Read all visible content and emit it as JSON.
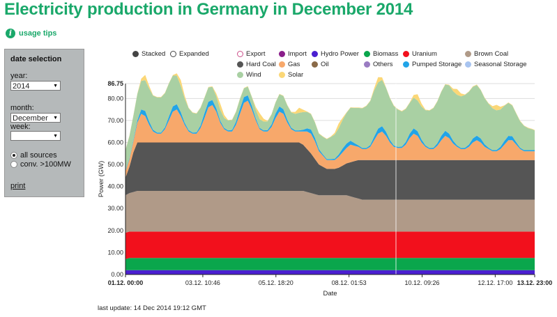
{
  "page": {
    "title": "Electricity production in Germany in December 2014",
    "usage_tips": "usage tips",
    "last_update": "last update: 14 Dec 2014 19:12 GMT"
  },
  "panel": {
    "heading": "date selection",
    "year_label": "year:",
    "year_value": "2014",
    "month_label": "month:",
    "month_value": "December",
    "week_label": "week:",
    "week_value": "",
    "radio_all": "all sources",
    "radio_conv": "conv. >100MW",
    "print": "print"
  },
  "modes": {
    "stacked": "Stacked",
    "expanded": "Expanded"
  },
  "colors": {
    "export": "#cc4f8a",
    "import": "#8a1e8a",
    "hydro": "#4a1fd0",
    "biomass": "#0aa64c",
    "uranium": "#f2101c",
    "brown_coal": "#b09a88",
    "hard_coal": "#555555",
    "gas": "#f7a86b",
    "oil": "#8a6a48",
    "others": "#9a7cc2",
    "pumped": "#21a4e8",
    "seasonal": "#a8c4f0",
    "wind": "#a9d0a3",
    "solar": "#fbd777"
  },
  "legend": [
    {
      "key": "export",
      "label": "Export",
      "hollow": true
    },
    {
      "key": "import",
      "label": "Import"
    },
    {
      "key": "hydro",
      "label": "Hydro Power"
    },
    {
      "key": "biomass",
      "label": "Biomass"
    },
    {
      "key": "uranium",
      "label": "Uranium"
    },
    {
      "key": "brown_coal",
      "label": "Brown Coal"
    },
    {
      "key": "hard_coal",
      "label": "Hard Coal"
    },
    {
      "key": "gas",
      "label": "Gas"
    },
    {
      "key": "oil",
      "label": "Oil"
    },
    {
      "key": "others",
      "label": "Others"
    },
    {
      "key": "pumped",
      "label": "Pumped Storage"
    },
    {
      "key": "seasonal",
      "label": "Seasonal Storage"
    },
    {
      "key": "wind",
      "label": "Wind"
    },
    {
      "key": "solar",
      "label": "Solar"
    }
  ],
  "chart_data": {
    "type": "area",
    "stacked": true,
    "title": "Electricity production in Germany in December 2014",
    "xlabel": "Date",
    "ylabel": "Power (GW)",
    "ylim": [
      0,
      86.75
    ],
    "xlim_hours": [
      0,
      311
    ],
    "y_ticks": [
      "0.00",
      "10.00",
      "20.00",
      "30.00",
      "40.00",
      "50.00",
      "60.00",
      "70.00",
      "80.00",
      "86.75"
    ],
    "x_ticks": [
      {
        "label": "01.12. 00:00",
        "hour": 0,
        "bold": true
      },
      {
        "label": "03.12. 10:46",
        "hour": 58.77
      },
      {
        "label": "05.12. 18:20",
        "hour": 114.33
      },
      {
        "label": "08.12. 01:53",
        "hour": 169.88
      },
      {
        "label": "10.12. 09:26",
        "hour": 225.43
      },
      {
        "label": "12.12. 17:00",
        "hour": 281
      },
      {
        "label": "13.12. 23:00",
        "hour": 311,
        "bold": true
      }
    ],
    "series_order": [
      "hydro",
      "biomass",
      "uranium",
      "brown_coal",
      "hard_coal",
      "gas",
      "pumped",
      "wind",
      "solar"
    ],
    "series_names": {
      "hydro": "Hydro Power",
      "biomass": "Biomass",
      "uranium": "Uranium",
      "brown_coal": "Brown Coal",
      "hard_coal": "Hard Coal",
      "gas": "Gas",
      "pumped": "Pumped Storage",
      "wind": "Wind",
      "solar": "Solar"
    },
    "x": [
      0,
      3,
      6,
      9,
      12,
      15,
      18,
      21,
      24,
      27,
      30,
      33,
      36,
      39,
      42,
      45,
      48,
      51,
      54,
      57,
      60,
      63,
      66,
      69,
      72,
      75,
      78,
      81,
      84,
      87,
      90,
      93,
      96,
      99,
      102,
      105,
      108,
      111,
      114,
      117,
      120,
      123,
      126,
      129,
      132,
      135,
      138,
      141,
      144,
      147,
      150,
      153,
      156,
      159,
      162,
      165,
      168,
      171,
      174,
      177,
      180,
      183,
      186,
      189,
      192,
      195,
      198,
      201,
      204,
      207,
      210,
      213,
      216,
      219,
      222,
      225,
      228,
      231,
      234,
      237,
      240,
      243,
      246,
      249,
      252,
      255,
      258,
      261,
      264,
      267,
      270,
      273,
      276,
      279,
      282,
      285,
      288,
      291,
      294,
      297,
      300,
      303,
      306,
      309,
      311
    ],
    "series": {
      "hydro": [
        2.0,
        2.0,
        2.0,
        2.0,
        2.0,
        2.0,
        2.0,
        2.0,
        2.0,
        2.0,
        2.0,
        2.0,
        2.0,
        2.0,
        2.0,
        2.0,
        2.0,
        2.0,
        2.0,
        2.0,
        2.0,
        2.0,
        2.0,
        2.0,
        2.0,
        2.0,
        2.0,
        2.0,
        2.0,
        2.0,
        2.0,
        2.0,
        2.0,
        2.0,
        2.0,
        2.0,
        2.0,
        2.0,
        2.0,
        2.0,
        2.0,
        2.0,
        2.0,
        2.0,
        2.0,
        2.0,
        2.0,
        2.0,
        2.0,
        2.0,
        2.0,
        2.0,
        2.0,
        2.0,
        2.0,
        2.0,
        2.0,
        2.0,
        2.0,
        2.0,
        2.0,
        2.0,
        2.0,
        2.0,
        2.0,
        2.0,
        2.0,
        2.0,
        2.0,
        2.0,
        2.0,
        2.0,
        2.0,
        2.0,
        2.0,
        2.0,
        2.0,
        2.0,
        2.0,
        2.0,
        2.0,
        2.0,
        2.0,
        2.0,
        2.0,
        2.0,
        2.0,
        2.0,
        2.0,
        2.0,
        2.0,
        2.0,
        2.0,
        2.0,
        2.0,
        2.0,
        2.0,
        2.0,
        2.0,
        2.0,
        2.0,
        2.0,
        2.0,
        2.0,
        2.0
      ],
      "biomass": [
        5.0,
        5.5,
        5.5,
        5.5,
        5.5,
        5.5,
        5.5,
        5.5,
        5.5,
        5.5,
        5.5,
        5.5,
        5.5,
        5.5,
        5.5,
        5.5,
        5.5,
        5.5,
        5.5,
        5.5,
        5.5,
        5.5,
        5.5,
        5.5,
        5.5,
        5.5,
        5.5,
        5.5,
        5.5,
        5.5,
        5.5,
        5.5,
        5.5,
        5.5,
        5.5,
        5.5,
        5.5,
        5.5,
        5.5,
        5.5,
        5.5,
        5.5,
        5.5,
        5.5,
        5.5,
        5.5,
        5.5,
        5.5,
        5.5,
        5.5,
        5.5,
        5.5,
        5.5,
        5.5,
        5.5,
        5.5,
        5.5,
        5.5,
        5.5,
        5.5,
        5.5,
        5.5,
        5.5,
        5.5,
        5.5,
        5.5,
        5.5,
        5.5,
        5.5,
        5.5,
        5.5,
        5.5,
        5.5,
        5.5,
        5.5,
        5.5,
        5.5,
        5.5,
        5.5,
        5.5,
        5.5,
        5.5,
        5.5,
        5.5,
        5.5,
        5.5,
        5.5,
        5.5,
        5.5,
        5.5,
        5.5,
        5.5,
        5.5,
        5.5,
        5.5,
        5.5,
        5.5,
        5.5,
        5.5,
        5.5,
        5.5,
        5.5,
        5.5,
        5.5,
        5.5
      ],
      "uranium": [
        12.0,
        12.0,
        12.0,
        12.0,
        12.0,
        12.0,
        12.0,
        12.0,
        12.0,
        12.0,
        12.0,
        12.0,
        12.0,
        12.0,
        12.0,
        12.0,
        12.0,
        12.0,
        12.0,
        12.0,
        12.0,
        12.0,
        12.0,
        12.0,
        12.0,
        12.0,
        12.0,
        12.0,
        12.0,
        12.0,
        12.0,
        12.0,
        12.0,
        12.0,
        12.0,
        12.0,
        12.0,
        12.0,
        12.0,
        12.0,
        12.0,
        12.0,
        12.0,
        12.0,
        12.0,
        12.0,
        12.0,
        12.0,
        12.0,
        12.0,
        12.0,
        12.0,
        12.0,
        12.0,
        12.0,
        12.0,
        12.0,
        12.0,
        12.0,
        12.0,
        12.0,
        12.0,
        12.0,
        12.0,
        12.0,
        12.0,
        12.0,
        12.0,
        12.0,
        12.0,
        12.0,
        12.0,
        12.0,
        12.0,
        12.0,
        12.0,
        12.0,
        12.0,
        12.0,
        12.0,
        12.0,
        12.0,
        12.0,
        12.0,
        12.0,
        12.0,
        12.0,
        12.0,
        12.0,
        12.0,
        12.0,
        12.0,
        12.0,
        12.0,
        12.0,
        12.0,
        12.0,
        12.0,
        12.0,
        12.0,
        12.0,
        12.0,
        12.0,
        12.0,
        12.0
      ],
      "brown_coal": [
        17.0,
        17.5,
        18.0,
        18.5,
        18.5,
        18.5,
        18.5,
        18.5,
        18.5,
        18.5,
        18.5,
        18.5,
        18.5,
        18.5,
        18.5,
        18.5,
        18.5,
        18.5,
        18.5,
        18.5,
        18.5,
        18.5,
        18.5,
        18.5,
        18.5,
        18.5,
        18.5,
        18.5,
        18.5,
        18.5,
        18.5,
        18.5,
        18.5,
        18.5,
        18.5,
        18.5,
        18.5,
        18.5,
        18.5,
        18.5,
        18.5,
        18.5,
        18.5,
        18.5,
        18.5,
        18.5,
        18.0,
        17.5,
        17.0,
        16.5,
        16.5,
        16.5,
        16.5,
        16.5,
        16.5,
        16.5,
        16.5,
        16.0,
        15.5,
        15.0,
        14.5,
        14.5,
        14.5,
        14.5,
        14.5,
        14.5,
        14.5,
        14.5,
        14.5,
        14.5,
        14.5,
        14.5,
        14.5,
        14.5,
        14.5,
        14.5,
        14.5,
        14.5,
        14.5,
        14.5,
        14.5,
        14.5,
        14.5,
        14.5,
        14.5,
        14.5,
        14.5,
        14.5,
        14.5,
        14.5,
        14.5,
        14.5,
        14.5,
        14.5,
        14.5,
        14.5,
        14.5,
        14.5,
        14.5,
        14.5,
        14.5,
        14.5,
        14.5,
        14.5,
        14.5
      ],
      "hard_coal": [
        8.0,
        12.0,
        18.0,
        22.0,
        22.0,
        22.0,
        22.0,
        22.0,
        22.0,
        22.0,
        22.0,
        22.0,
        22.0,
        22.0,
        22.0,
        22.0,
        22.0,
        22.0,
        22.0,
        22.0,
        22.0,
        22.0,
        22.0,
        22.0,
        22.0,
        22.0,
        22.0,
        22.0,
        22.0,
        22.0,
        22.0,
        22.0,
        22.0,
        22.0,
        22.0,
        22.0,
        22.0,
        22.0,
        22.0,
        22.0,
        22.0,
        22.0,
        22.0,
        22.0,
        22.0,
        21.0,
        19.5,
        18.0,
        16.0,
        14.0,
        13.0,
        12.0,
        12.0,
        12.0,
        12.5,
        13.5,
        14.5,
        15.5,
        16.5,
        17.5,
        18.0,
        18.0,
        18.0,
        18.0,
        18.0,
        18.0,
        18.0,
        18.0,
        18.0,
        18.0,
        18.0,
        18.0,
        18.0,
        18.0,
        18.0,
        18.0,
        18.0,
        18.0,
        18.0,
        18.0,
        18.0,
        18.0,
        18.0,
        18.0,
        18.0,
        18.0,
        18.0,
        18.0,
        18.0,
        18.0,
        18.0,
        18.0,
        18.0,
        18.0,
        18.0,
        18.0,
        18.0,
        18.0,
        18.0,
        18.0,
        18.0,
        18.0,
        18.0,
        18.0,
        18.0
      ],
      "gas": [
        3.0,
        3.5,
        5.0,
        9.0,
        13.0,
        12.0,
        8.0,
        5.0,
        4.0,
        4.0,
        6.0,
        10.0,
        14.0,
        15.0,
        12.0,
        8.0,
        5.0,
        4.0,
        4.0,
        6.5,
        11.0,
        16.0,
        17.0,
        14.0,
        9.0,
        6.0,
        5.0,
        5.0,
        8.0,
        13.0,
        18.0,
        19.0,
        15.0,
        10.0,
        6.0,
        5.0,
        5.0,
        7.0,
        11.0,
        14.0,
        13.0,
        9.0,
        6.0,
        5.0,
        5.0,
        6.0,
        8.0,
        9.0,
        8.0,
        6.0,
        5.0,
        4.0,
        4.0,
        4.0,
        5.0,
        6.0,
        7.0,
        8.0,
        7.0,
        6.0,
        5.0,
        5.0,
        6.0,
        9.0,
        12.0,
        13.0,
        11.0,
        8.0,
        6.0,
        5.5,
        5.5,
        7.0,
        10.0,
        12.0,
        11.0,
        8.0,
        6.0,
        5.0,
        5.0,
        6.5,
        9.0,
        11.0,
        10.0,
        7.5,
        6.0,
        5.0,
        5.0,
        6.0,
        8.0,
        9.0,
        8.0,
        6.0,
        5.0,
        4.0,
        4.0,
        5.0,
        7.0,
        9.0,
        9.0,
        7.0,
        5.0,
        4.0,
        4.0,
        4.0,
        4.0
      ],
      "pumped": [
        0.5,
        0.5,
        0.6,
        1.0,
        2.0,
        2.3,
        1.5,
        0.8,
        0.5,
        0.5,
        0.9,
        1.8,
        2.4,
        2.4,
        1.8,
        1.0,
        0.6,
        0.5,
        0.6,
        1.2,
        2.2,
        2.5,
        2.3,
        1.6,
        0.9,
        0.6,
        0.5,
        0.7,
        1.4,
        2.3,
        2.6,
        2.4,
        1.7,
        1.0,
        0.6,
        0.5,
        0.6,
        1.2,
        2.1,
        2.4,
        2.1,
        1.3,
        0.7,
        0.5,
        0.5,
        0.8,
        1.4,
        1.9,
        1.6,
        1.0,
        0.6,
        0.5,
        0.5,
        0.6,
        1.0,
        1.7,
        2.0,
        1.8,
        1.2,
        0.7,
        0.5,
        0.5,
        0.8,
        1.6,
        2.3,
        2.4,
        1.9,
        1.1,
        0.6,
        0.5,
        0.6,
        1.2,
        2.0,
        2.4,
        2.1,
        1.3,
        0.7,
        0.5,
        0.6,
        1.1,
        2.0,
        2.3,
        2.0,
        1.3,
        0.7,
        0.5,
        0.6,
        1.0,
        1.8,
        2.1,
        1.8,
        1.1,
        0.6,
        0.5,
        0.6,
        1.0,
        1.7,
        2.0,
        1.8,
        1.1,
        0.6,
        0.5,
        0.5,
        0.5,
        0.5
      ],
      "wind": [
        9.0,
        10.0,
        11.0,
        12.0,
        13.0,
        14.0,
        15.0,
        15.5,
        16.0,
        16.0,
        15.5,
        15.0,
        14.0,
        13.0,
        12.0,
        11.0,
        10.0,
        9.0,
        8.5,
        8.0,
        7.0,
        6.5,
        6.0,
        5.5,
        5.0,
        4.5,
        4.5,
        4.5,
        4.5,
        4.5,
        4.0,
        4.0,
        4.0,
        4.0,
        4.0,
        4.0,
        4.0,
        4.5,
        5.0,
        5.5,
        6.0,
        6.5,
        7.0,
        7.5,
        8.0,
        8.0,
        7.5,
        7.0,
        7.0,
        7.0,
        8.0,
        9.0,
        10.0,
        11.0,
        12.0,
        13.0,
        14.0,
        15.0,
        16.0,
        17.0,
        18.0,
        19.0,
        20.0,
        21.0,
        21.0,
        21.0,
        20.0,
        19.0,
        18.0,
        17.0,
        16.0,
        15.0,
        14.0,
        14.0,
        14.0,
        15.0,
        16.0,
        17.0,
        18.0,
        19.0,
        20.0,
        21.0,
        22.0,
        22.5,
        23.0,
        23.5,
        24.0,
        24.0,
        23.5,
        23.0,
        22.0,
        21.0,
        20.0,
        19.0,
        18.0,
        17.0,
        16.0,
        15.0,
        14.0,
        13.0,
        12.0,
        11.0,
        10.0,
        9.5,
        9.0
      ],
      "solar": [
        0.2,
        0.2,
        0.2,
        0.2,
        1.0,
        2.4,
        1.2,
        0.2,
        0.2,
        0.2,
        0.2,
        0.2,
        0.2,
        1.0,
        2.6,
        1.3,
        0.2,
        0.2,
        0.2,
        0.2,
        0.2,
        0.2,
        0.2,
        1.2,
        2.8,
        1.4,
        0.2,
        0.2,
        0.2,
        0.2,
        0.2,
        0.2,
        0.2,
        1.1,
        2.7,
        1.3,
        0.2,
        0.2,
        0.2,
        0.2,
        0.2,
        0.2,
        0.2,
        0.9,
        2.3,
        1.1,
        0.2,
        0.2,
        0.2,
        0.2,
        0.2,
        0.2,
        0.2,
        0.8,
        2.1,
        1.0,
        0.2,
        0.2,
        0.2,
        0.2,
        0.2,
        0.2,
        0.2,
        1.0,
        2.4,
        1.2,
        0.2,
        0.2,
        0.2,
        0.2,
        0.2,
        0.2,
        0.2,
        1.2,
        2.8,
        1.4,
        0.2,
        0.2,
        0.2,
        0.2,
        0.2,
        0.2,
        0.2,
        1.1,
        2.6,
        1.3,
        0.2,
        0.2,
        0.2,
        0.2,
        0.2,
        0.2,
        0.2,
        1.0,
        2.5,
        1.2,
        0.2,
        0.2,
        0.2,
        0.2,
        0.2,
        0.2,
        0.2,
        0.2,
        0.2
      ]
    }
  }
}
